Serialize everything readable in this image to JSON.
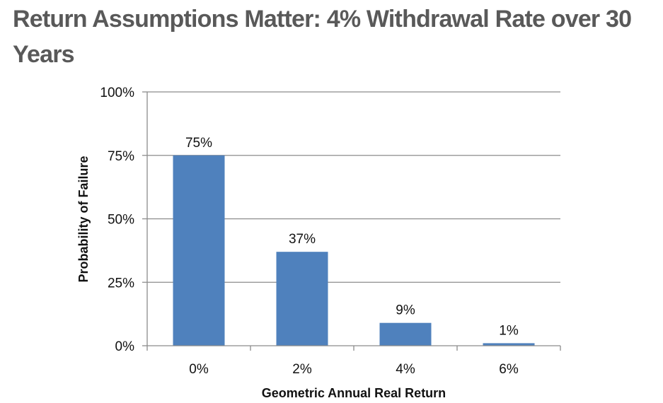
{
  "chart_data": {
    "type": "bar",
    "title": "Return Assumptions Matter: 4% Withdrawal Rate over 30 Years",
    "xlabel": "Geometric Annual Real Return",
    "ylabel": "Probability of Failure",
    "categories": [
      "0%",
      "2%",
      "4%",
      "6%"
    ],
    "values": [
      75,
      37,
      9,
      1
    ],
    "data_labels": [
      "75%",
      "37%",
      "9%",
      "1%"
    ],
    "ylim": [
      0,
      100
    ],
    "yticks": [
      0,
      25,
      50,
      75,
      100
    ],
    "ytick_labels": [
      "0%",
      "25%",
      "50%",
      "75%",
      "100%"
    ],
    "grid": true,
    "legend": "none",
    "bar_color": "#4f81bd",
    "grid_color": "#8c8c8c",
    "title_color": "#595959"
  }
}
